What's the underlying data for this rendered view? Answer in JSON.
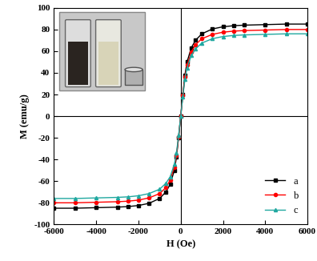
{
  "chart_data": {
    "type": "line",
    "x_label": "H (Oe)",
    "y_label": "M (emu/g)",
    "x": [
      -6000,
      -5000,
      -4000,
      -3000,
      -2500,
      -2000,
      -1500,
      -1000,
      -700,
      -500,
      -300,
      -200,
      -100,
      0,
      100,
      200,
      300,
      500,
      700,
      1000,
      1500,
      2000,
      2500,
      3000,
      4000,
      5000,
      6000
    ],
    "series": [
      {
        "name": "a",
        "color": "#000000",
        "marker": "square",
        "values": [
          -85,
          -85,
          -84.5,
          -84,
          -83.5,
          -82.5,
          -80.5,
          -76,
          -70,
          -63,
          -50,
          -38,
          -20,
          0,
          20,
          38,
          50,
          63,
          70,
          76,
          80.5,
          82.5,
          83.5,
          84,
          84.5,
          85,
          85
        ]
      },
      {
        "name": "b",
        "color": "#ff0000",
        "marker": "circle",
        "values": [
          -80,
          -80,
          -79.5,
          -79,
          -78.5,
          -77.5,
          -75.5,
          -71.5,
          -66,
          -59,
          -47,
          -36,
          -19,
          0,
          19,
          36,
          47,
          59,
          66,
          71.5,
          75.5,
          77.5,
          78.5,
          79,
          79.5,
          80,
          80
        ]
      },
      {
        "name": "c",
        "color": "#20a8a0",
        "marker": "triangle",
        "values": [
          -76,
          -76,
          -75.5,
          -75,
          -74.5,
          -73.5,
          -71.5,
          -67.5,
          -62,
          -56,
          -44.5,
          -34,
          -18,
          0,
          18,
          34,
          44.5,
          56,
          62,
          67.5,
          71.5,
          73.5,
          74.5,
          75,
          75.5,
          76,
          76
        ]
      }
    ],
    "xlim": [
      -6000,
      6000
    ],
    "xticks": [
      -6000,
      -4000,
      -2000,
      0,
      2000,
      4000,
      6000
    ],
    "ylim": [
      -100,
      100
    ],
    "yticks": [
      -100,
      -80,
      -60,
      -40,
      -20,
      0,
      20,
      40,
      60,
      80,
      100
    ],
    "legend": "lower right",
    "grid": false
  }
}
